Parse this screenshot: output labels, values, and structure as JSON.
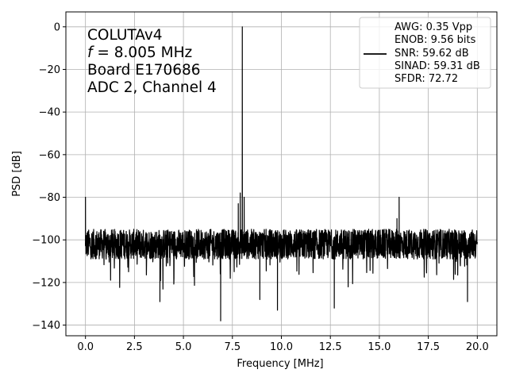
{
  "chart_data": {
    "type": "line",
    "xlabel": "Frequency [MHz]",
    "ylabel": "PSD [dB]",
    "xlim": [
      -1.0,
      21.0
    ],
    "ylim": [
      -145,
      7
    ],
    "xticks": [
      0.0,
      2.5,
      5.0,
      7.5,
      10.0,
      12.5,
      15.0,
      17.5,
      20.0
    ],
    "xtick_labels": [
      "0.0",
      "2.5",
      "5.0",
      "7.5",
      "10.0",
      "12.5",
      "15.0",
      "17.5",
      "20.0"
    ],
    "yticks": [
      0,
      -20,
      -40,
      -60,
      -80,
      -100,
      -120,
      -140
    ],
    "ytick_labels": [
      "0",
      "−20",
      "−40",
      "−60",
      "−80",
      "−100",
      "−120",
      "−140"
    ],
    "grid": true,
    "annotation": {
      "line1": "COLUTAv4",
      "line2_var": "f",
      "line2_rest": " = 8.005 MHz",
      "line3": "Board E170686",
      "line4": "ADC 2, Channel 4"
    },
    "legend": {
      "placement": "top-right",
      "lines": [
        "AWG: 0.35 Vpp",
        "ENOB: 9.56 bits",
        "SNR: 59.62 dB",
        "SINAD: 59.31 dB",
        "SFDR: 72.72"
      ]
    },
    "series": [
      {
        "color": "#000000",
        "noise_floor_db": -102,
        "noise_spread_db": 7,
        "x_start": 0.0,
        "x_end": 20.0,
        "features": [
          {
            "x": 0.0,
            "y": -80
          },
          {
            "x": 8.005,
            "y": 0
          },
          {
            "x": 7.8,
            "y": -83
          },
          {
            "x": 7.9,
            "y": -78
          },
          {
            "x": 8.1,
            "y": -80
          },
          {
            "x": 16.01,
            "y": -80
          },
          {
            "x": 15.9,
            "y": -90
          },
          {
            "x": 3.8,
            "y": -129
          },
          {
            "x": 6.9,
            "y": -138
          },
          {
            "x": 8.9,
            "y": -128
          },
          {
            "x": 9.8,
            "y": -133
          },
          {
            "x": 12.7,
            "y": -132
          },
          {
            "x": 19.5,
            "y": -129
          }
        ]
      }
    ]
  }
}
